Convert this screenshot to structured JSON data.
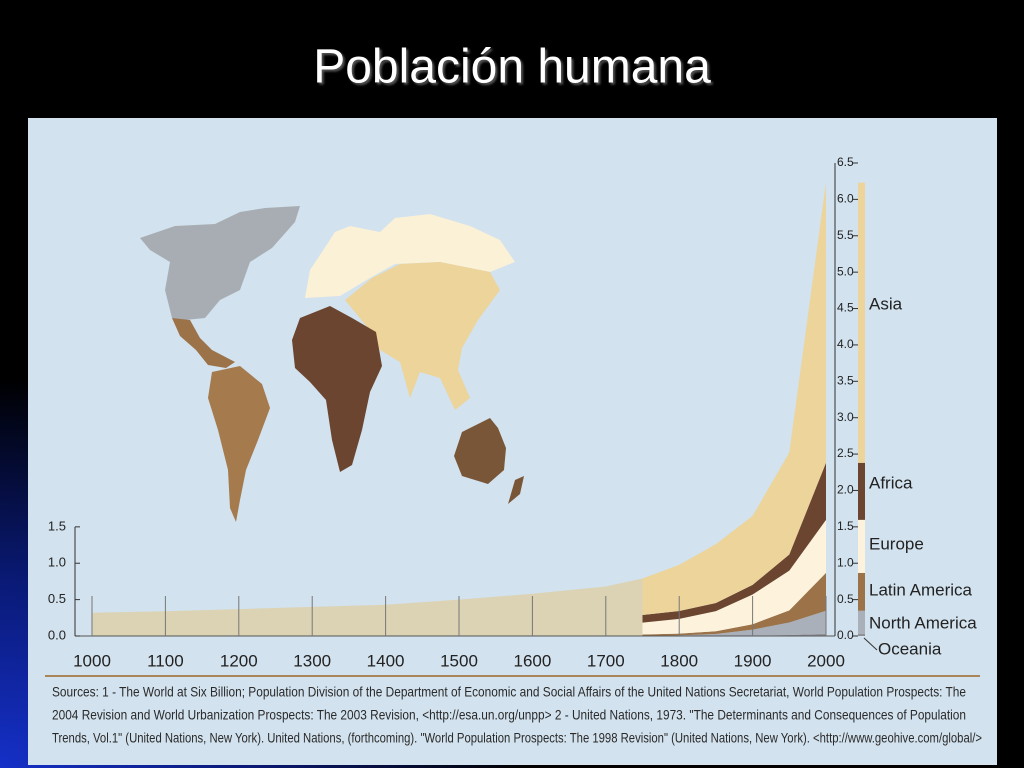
{
  "title": "Población humana",
  "chart_data": {
    "type": "stacked_area",
    "xlim": [
      1000,
      2000
    ],
    "xticks": [
      1000,
      1100,
      1200,
      1300,
      1400,
      1500,
      1600,
      1700,
      1800,
      1900,
      2000
    ],
    "ylim": [
      0,
      6.5
    ],
    "yticks": [
      {
        "value": 0,
        "label": "0.0"
      },
      {
        "value": 0.5,
        "label": "0.5"
      },
      {
        "value": 1,
        "label": "1.0"
      },
      {
        "value": 1.5,
        "label": "1.5"
      },
      {
        "value": 2,
        "label": "2.0"
      },
      {
        "value": 2.5,
        "label": "2.5"
      },
      {
        "value": 3,
        "label": "3.0"
      },
      {
        "value": 3.5,
        "label": "3.5"
      },
      {
        "value": 4,
        "label": "4.0"
      },
      {
        "value": 4.5,
        "label": "4.5"
      },
      {
        "value": 5,
        "label": "5.0"
      },
      {
        "value": 5.5,
        "label": "5.5"
      },
      {
        "value": 6,
        "label": "6.0"
      },
      {
        "value": 6.5,
        "label": "6.5"
      }
    ],
    "left_yticks": [
      {
        "value": 0,
        "label": "0.0"
      },
      {
        "value": 0.5,
        "label": "0.5"
      },
      {
        "value": 1,
        "label": "1.0"
      },
      {
        "value": 1.5,
        "label": "1.5"
      }
    ],
    "world_total": {
      "color": "#dcd3b4",
      "x": [
        1000,
        1100,
        1200,
        1300,
        1400,
        1500,
        1600,
        1700,
        1750
      ],
      "values": [
        0.32,
        0.34,
        0.37,
        0.4,
        0.43,
        0.5,
        0.58,
        0.68,
        0.79
      ]
    },
    "x": [
      1750,
      1800,
      1850,
      1900,
      1950,
      2000
    ],
    "series": [
      {
        "name": "Oceania",
        "color": "#8e9096",
        "values": [
          0.002,
          0.002,
          0.002,
          0.006,
          0.013,
          0.031
        ]
      },
      {
        "name": "North America",
        "color": "#a9b0ba",
        "values": [
          0.002,
          0.007,
          0.026,
          0.082,
          0.172,
          0.316
        ]
      },
      {
        "name": "Latin America",
        "color": "#9c7248",
        "values": [
          0.016,
          0.024,
          0.038,
          0.074,
          0.167,
          0.52
        ]
      },
      {
        "name": "Europe",
        "color": "#fdf3dc",
        "values": [
          0.163,
          0.203,
          0.276,
          0.408,
          0.547,
          0.729
        ]
      },
      {
        "name": "Africa",
        "color": "#6b4530",
        "values": [
          0.106,
          0.107,
          0.111,
          0.133,
          0.221,
          0.784
        ]
      },
      {
        "name": "Asia",
        "color": "#ecd49a",
        "values": [
          0.502,
          0.635,
          0.809,
          0.947,
          1.402,
          3.85
        ]
      }
    ]
  },
  "sources": [
    "Sources:  1 -  The World at Six Billion; Population Division of the Department of Economic and Social Affairs of the United Nations Secretariat, World Population Prospects: The",
    "2004 Revision and World Urbanization Prospects: The 2003 Revision, <http://esa.un.org/unpp>  2 - United Nations, 1973. \"The Determinants and Consequences of Population",
    "Trends, Vol.1\" (United Nations, New York). United Nations, (forthcoming). \"World Population Prospects: The 1998 Revision\" (United Nations, New York).    <http://www.geohive.com/global/>"
  ]
}
